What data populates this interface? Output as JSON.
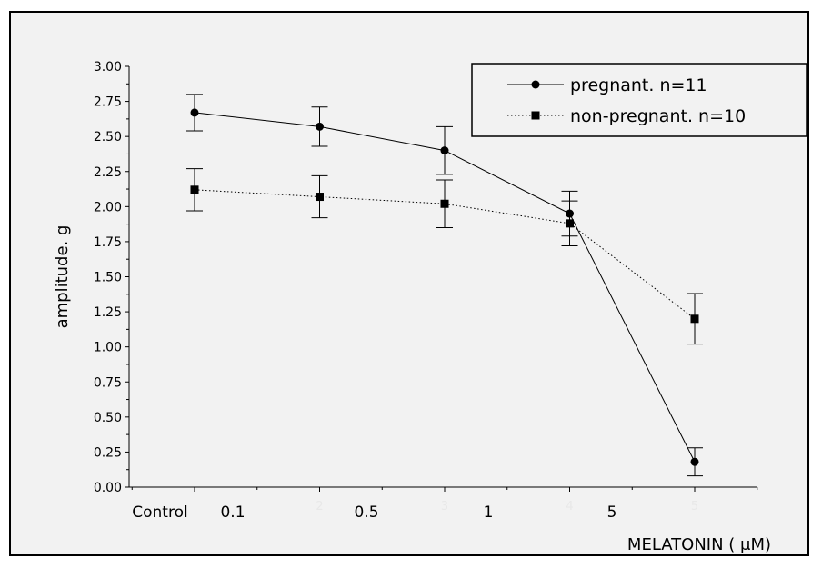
{
  "chart_data": {
    "type": "line",
    "ylabel": "amplitude. g",
    "xlabel": "MELATONIN ( μM)",
    "ylim": [
      0,
      3
    ],
    "yticks": [
      "0.00",
      "0.25",
      "0.50",
      "0.75",
      "1.00",
      "1.25",
      "1.50",
      "1.75",
      "2.00",
      "2.25",
      "2.50",
      "2.75",
      "3.00"
    ],
    "x_positions": [
      1,
      2,
      3,
      4,
      5
    ],
    "faint_tick_labels": [
      "2",
      "3",
      "4",
      "5"
    ],
    "category_labels": [
      "Control",
      "0.1",
      "0.5",
      "1",
      "5"
    ],
    "legend_placement": "top-right",
    "series": [
      {
        "name": "pregnant. n=11",
        "marker": "circle",
        "line": "solid",
        "values": [
          2.67,
          2.57,
          2.4,
          1.95,
          0.18
        ],
        "errors": [
          0.13,
          0.14,
          0.17,
          0.16,
          0.1
        ]
      },
      {
        "name": "non-pregnant. n=10",
        "marker": "square",
        "line": "dotted",
        "values": [
          2.12,
          2.07,
          2.02,
          1.88,
          1.2
        ],
        "errors": [
          0.15,
          0.15,
          0.17,
          0.16,
          0.18
        ]
      }
    ]
  }
}
